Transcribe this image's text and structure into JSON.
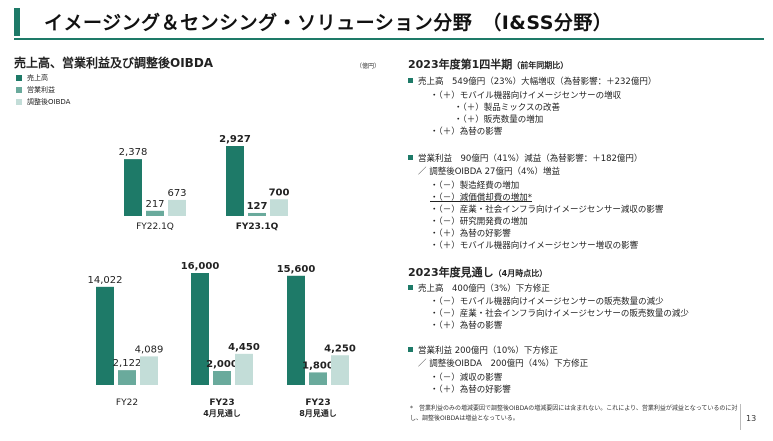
{
  "title": "イメージング＆センシング・ソリューション分野　（I&SS分野）",
  "chart_heading": "売上高、営業利益及び調整後OIBDA",
  "unit": "（億円）",
  "legend": [
    {
      "label": "売上高",
      "color": "#1e7a68"
    },
    {
      "label": "営業利益",
      "color": "#6aaa9c"
    },
    {
      "label": "調整後OIBDA",
      "color": "#c3ddd8"
    }
  ],
  "chart_data": [
    {
      "type": "bar",
      "title": "売上高、営業利益及び調整後OIBDA（四半期）",
      "categories": [
        "FY22.1Q",
        "FY23.1Q"
      ],
      "category_bold": [
        false,
        true
      ],
      "series": [
        {
          "name": "売上高",
          "values": [
            2378,
            2927
          ],
          "labels": [
            "2,378",
            "2,927"
          ]
        },
        {
          "name": "営業利益",
          "values": [
            217,
            127
          ],
          "labels": [
            "217",
            "127"
          ]
        },
        {
          "name": "調整後OIBDA",
          "values": [
            673,
            700
          ],
          "labels": [
            "673",
            "700"
          ]
        }
      ],
      "label_bold": [
        false,
        true
      ]
    },
    {
      "type": "bar",
      "title": "売上高、営業利益及び調整後OIBDA（年度）",
      "categories": [
        "FY22",
        "FY23\n4月見通し",
        "FY23\n8月見通し"
      ],
      "category_bold": [
        false,
        true,
        true
      ],
      "series": [
        {
          "name": "売上高",
          "values": [
            14022,
            16000,
            15600
          ],
          "labels": [
            "14,022",
            "16,000",
            "15,600"
          ]
        },
        {
          "name": "営業利益",
          "values": [
            2122,
            2000,
            1800
          ],
          "labels": [
            "2,122",
            "2,000",
            "1,800"
          ]
        },
        {
          "name": "調整後OIBDA",
          "values": [
            4089,
            4450,
            4250
          ],
          "labels": [
            "4,089",
            "4,450",
            "4,250"
          ]
        }
      ],
      "label_bold": [
        false,
        true,
        true
      ]
    }
  ],
  "q1": {
    "heading": "2023年度第1四半期",
    "heading_sub": "（前年同期比）",
    "sales": "売上高　549億円（23%）大幅増収（為替影響：＋232億円）",
    "sales_items": [
      "・（＋）モバイル機器向けイメージセンサーの増収",
      "・（＋）製品ミックスの改善",
      "・（＋）販売数量の増加",
      "・（＋）為替の影響"
    ],
    "op": "営業利益　90億円（41%）減益（為替影響：＋182億円）",
    "oibda": "／ 調整後OIBDA 27億円（4%）増益",
    "op_items": [
      "・（－）製造経費の増加",
      "・（－）減価償却費の増加*",
      "・（－）産業・社会インフラ向けイメージセンサー減収の影響",
      "・（－）研究開発費の増加",
      "・（＋）為替の好影響",
      "・（＋）モバイル機器向けイメージセンサー増収の影響"
    ]
  },
  "fy": {
    "heading": "2023年度見通し",
    "heading_sub": "（4月時点比）",
    "sales": "売上高　400億円（3%）下方修正",
    "sales_items": [
      "・（－）モバイル機器向けイメージセンサーの販売数量の減少",
      "・（－）産業・社会インフラ向けイメージセンサーの販売数量の減少",
      "・（＋）為替の影響"
    ],
    "op": "営業利益 200億円（10%）下方修正",
    "oibda": "／ 調整後OIBDA　200億円（4%）下方修正",
    "op_items": [
      "・（－）減収の影響",
      "・（＋）為替の好影響"
    ]
  },
  "note": "*　営業利益のみの増減要因で調整後OIBDAの増減要因には含まれない。これにより、営業利益が減益となっているのに対し、調整後OIBDAは増益となっている。",
  "page_number": "13"
}
